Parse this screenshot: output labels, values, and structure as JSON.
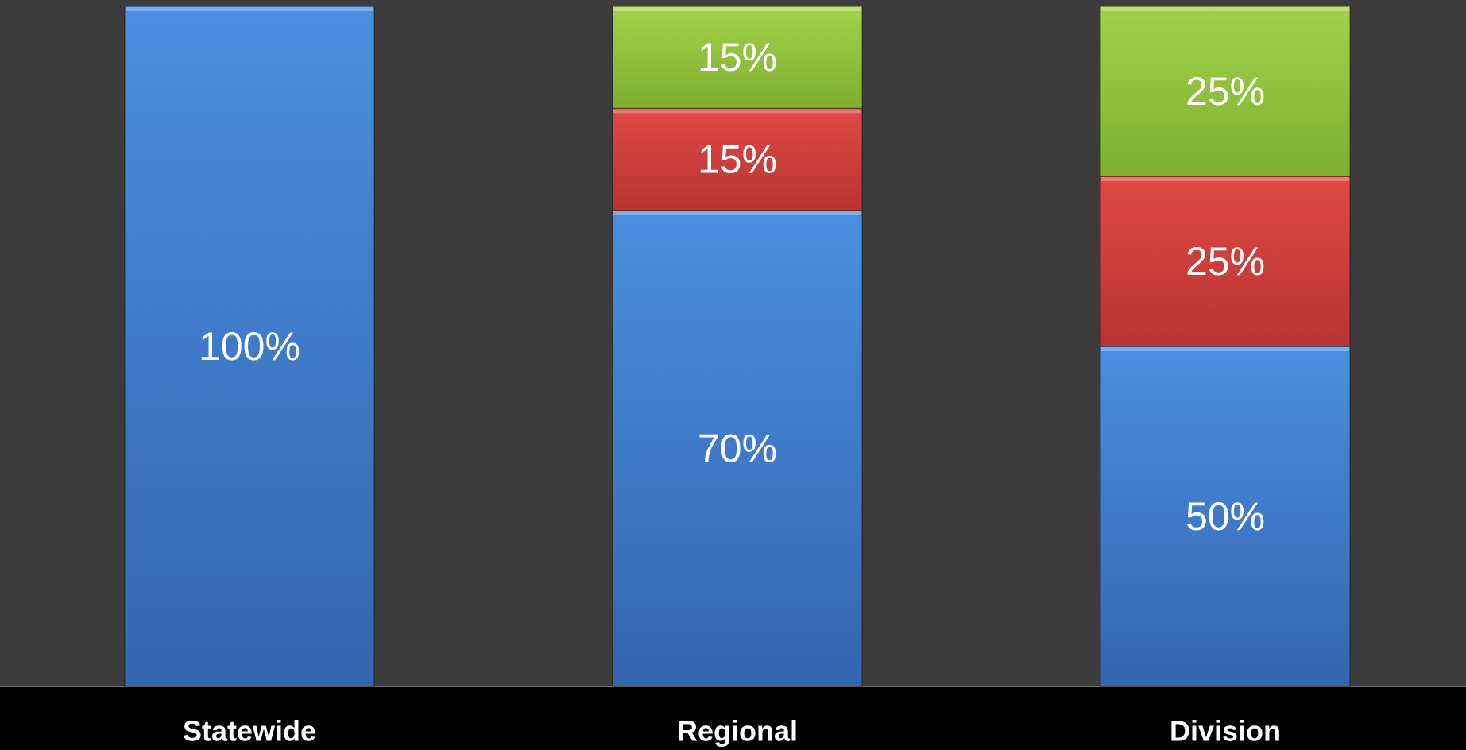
{
  "chart_data": {
    "type": "bar",
    "stacked": true,
    "categories": [
      "Statewide",
      "Regional",
      "Division"
    ],
    "series": [
      {
        "values": [
          100,
          70,
          50
        ],
        "color": "#3f7fd0"
      },
      {
        "values": [
          0,
          15,
          25
        ],
        "color": "#cc3b38"
      },
      {
        "values": [
          0,
          15,
          25
        ],
        "color": "#8fbf3a"
      }
    ],
    "data_labels": [
      [
        "100%",
        "",
        ""
      ],
      [
        "70%",
        "15%",
        "15%"
      ],
      [
        "50%",
        "25%",
        "25%"
      ]
    ],
    "ylim": [
      0,
      100
    ],
    "title": "",
    "xlabel": "",
    "ylabel": "",
    "grid": false,
    "legend": "none",
    "plot_background": "#3c3c3c",
    "page_background": "#000000"
  }
}
